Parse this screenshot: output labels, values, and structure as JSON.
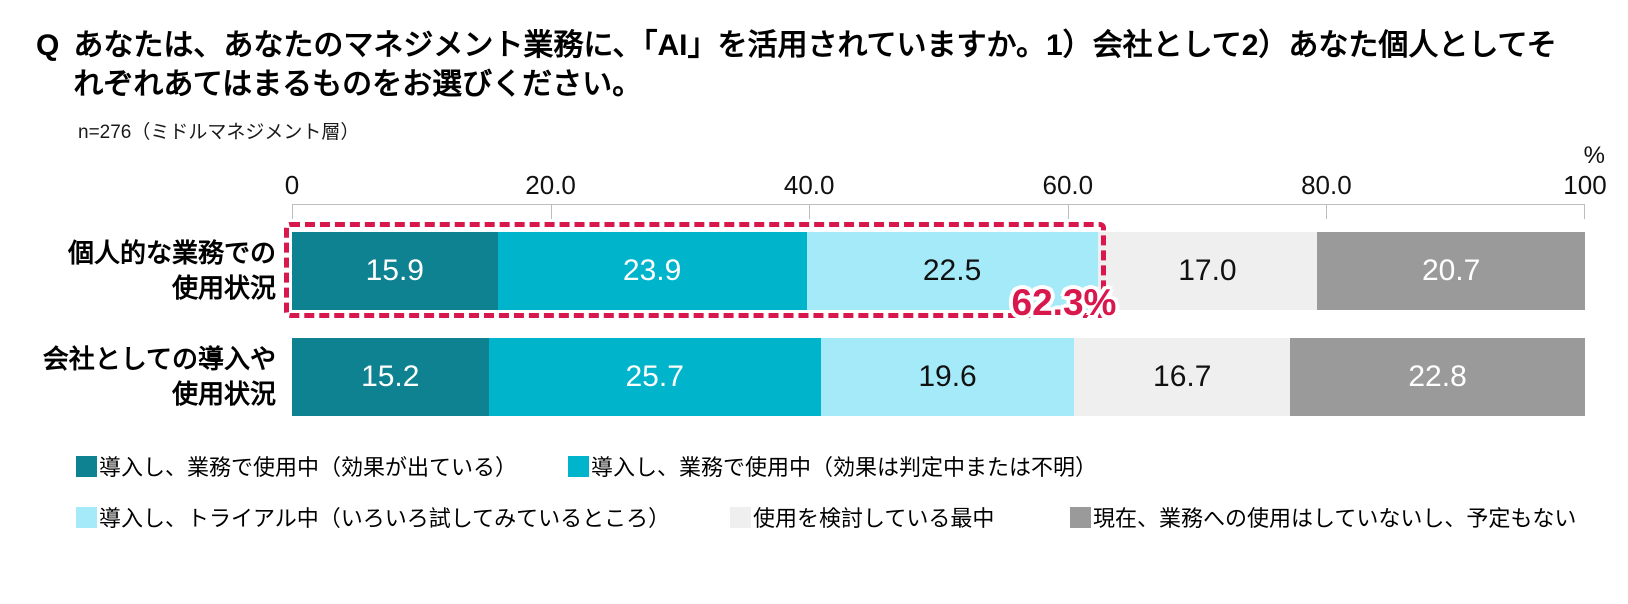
{
  "question": {
    "prefix": "Q",
    "text": "あなたは、あなたのマネジメント業務に、「AI」を活用されていますか。1）会社として2）あなた個人としてそれぞれあてはまるものをお選びください。"
  },
  "sample_note": "n=276（ミドルマネジメント層）",
  "axis": {
    "unit": "%",
    "tick_labels": [
      "0",
      "20.0",
      "40.0",
      "60.0",
      "80.0",
      "100"
    ]
  },
  "row_label_lines": [
    [
      "個人的な業務での",
      "使用状況"
    ],
    [
      "会社としての導入や",
      "使用状況"
    ]
  ],
  "annotation": {
    "label": "62.3%",
    "value": 62.3,
    "row": 0,
    "color": "#d8174d",
    "style": "red-dashed-box"
  },
  "colors": {
    "segment_1": "#0e8291",
    "segment_2": "#00b5cb",
    "segment_3": "#a4eaf8",
    "segment_4": "#efefef",
    "segment_5": "#9a9a9a",
    "highlight_red": "#d8174d",
    "axis_gray": "#bdbdbd"
  },
  "chart_data": {
    "type": "bar",
    "orientation": "horizontal-stacked",
    "unit": "%",
    "xlim": [
      0,
      100
    ],
    "x_ticks": [
      0,
      20.0,
      40.0,
      60.0,
      80.0,
      100
    ],
    "grid": false,
    "legend_position": "bottom",
    "categories": [
      "個人的な業務での使用状況",
      "会社としての導入や使用状況"
    ],
    "series": [
      {
        "name": "導入し、業務で使用中（効果が出ている）",
        "color": "#0e8291",
        "text_color": "#ffffff",
        "values": [
          15.9,
          15.2
        ]
      },
      {
        "name": "導入し、業務で使用中（効果は判定中または不明）",
        "color": "#00b5cb",
        "text_color": "#ffffff",
        "values": [
          23.9,
          25.7
        ]
      },
      {
        "name": "導入し、トライアル中（いろいろ試してみているところ）",
        "color": "#a4eaf8",
        "text_color": "#111111",
        "values": [
          22.5,
          19.6
        ]
      },
      {
        "name": "使用を検討している最中",
        "color": "#efefef",
        "text_color": "#111111",
        "values": [
          17.0,
          16.7
        ]
      },
      {
        "name": "現在、業務への使用はしていないし、予定もない",
        "color": "#9a9a9a",
        "text_color": "#ffffff",
        "values": [
          20.7,
          22.8
        ]
      }
    ],
    "annotation": {
      "row_index": 0,
      "segments_covered": [
        0,
        1,
        2
      ],
      "total_value": 62.3,
      "total_label": "62.3%"
    }
  }
}
